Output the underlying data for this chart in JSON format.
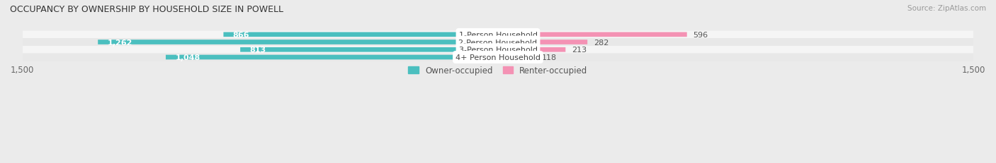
{
  "title": "OCCUPANCY BY OWNERSHIP BY HOUSEHOLD SIZE IN POWELL",
  "source": "Source: ZipAtlas.com",
  "categories": [
    "1-Person Household",
    "2-Person Household",
    "3-Person Household",
    "4+ Person Household"
  ],
  "owner_values": [
    866,
    1262,
    813,
    1048
  ],
  "renter_values": [
    596,
    282,
    213,
    118
  ],
  "owner_color": "#4BBFBF",
  "renter_color": "#F492B4",
  "row_colors": [
    "#f5f5f5",
    "#e8e8e8",
    "#f5f5f5",
    "#e8e8e8"
  ],
  "background_color": "#ebebeb",
  "axis_max": 1500,
  "label_color_outside": "#555555",
  "label_color_inside": "#ffffff",
  "title_color": "#333333",
  "legend_owner": "Owner-occupied",
  "legend_renter": "Renter-occupied"
}
